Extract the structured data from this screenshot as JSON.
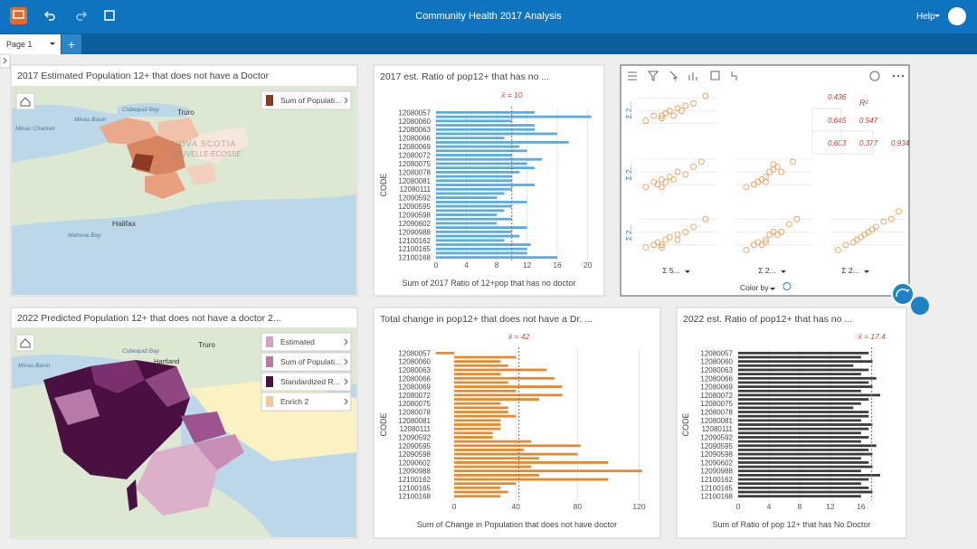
{
  "header": {
    "title": "Community Health 2017 Analysis",
    "help": "Help"
  },
  "tabs": {
    "page": "Page 1",
    "add": "+"
  },
  "maps": [
    {
      "title": "2017 Estimated Population 12+ that does not have a Doctor",
      "legend": [
        "Sum of Populati..."
      ],
      "labels": [
        "Truro",
        "Cobequid Bay",
        "Minas Basin",
        "Minas Channel",
        "Halifax",
        "Mahone Bay",
        "NOVA SCOTIA",
        "NOUVELLE-ÉCOSSE"
      ]
    },
    {
      "title": "2022 Predicted Population 12+ that does not have a doctor 2...",
      "legend": [
        "Estimated",
        "Sum of Populati...",
        "Standardized R...",
        "Enrich 2"
      ],
      "labels": [
        "Truro",
        "Cobequid Bay",
        "Minas Basin",
        "Hartland"
      ]
    }
  ],
  "scatter_matrix": {
    "x_labels": [
      "Σ 5...",
      "Σ 2...",
      "Σ 2..."
    ],
    "y_labels": [
      "Σ 2...",
      "Σ 2...",
      "Σ 2..."
    ],
    "r2_label": "R²",
    "r2": [
      0.436,
      0.645,
      0.547,
      0.603,
      0.377,
      0.934
    ],
    "color_by": "Color by"
  },
  "chart_data": [
    {
      "type": "bar",
      "orientation": "horizontal",
      "title": "2017 est. Ratio of pop12+ that has no ...",
      "y_label": "CODE",
      "x_label": "Sum of 2017 Ratio of 12+pop that has no doctor",
      "color": "#5aaedf",
      "mean": 10,
      "mean_label": "x̄ = 10",
      "categories": [
        "12080057",
        null,
        "12080060",
        null,
        "12080063",
        null,
        "12080066",
        null,
        "12080069",
        null,
        "12080072",
        null,
        "12080075",
        null,
        "12080078",
        null,
        "12080081",
        null,
        "12080111",
        null,
        "12090592",
        null,
        "12090595",
        null,
        "12090598",
        null,
        "12090602",
        null,
        "12090988",
        null,
        "12100162",
        null,
        "12100165",
        null,
        "12100168"
      ],
      "values": [
        13,
        20.5,
        10,
        13,
        13,
        16,
        9,
        17.5,
        11,
        12,
        10,
        14,
        12,
        13,
        11,
        10,
        10,
        13,
        10,
        9,
        8,
        12,
        10,
        9,
        8,
        10,
        8,
        12,
        10,
        11,
        9,
        12.5,
        12,
        12,
        16
      ],
      "xlim": [
        0,
        21
      ],
      "xticks": [
        0,
        4,
        8,
        12,
        16,
        20
      ]
    },
    {
      "type": "bar",
      "orientation": "horizontal",
      "title": "Total change in pop12+ that does not have a Dr. ...",
      "y_label": "CODE",
      "x_label": "Sum of Change in Population that does not have doctor",
      "color": "#e8892d",
      "mean": 42,
      "mean_label": "x̄ = 42",
      "categories": [
        "12080057",
        null,
        "12080060",
        null,
        "12080063",
        null,
        "12080066",
        null,
        "12080069",
        null,
        "12080072",
        null,
        "12080075",
        null,
        "12080078",
        null,
        "12080081",
        null,
        "12080111",
        null,
        "12090592",
        null,
        "12090595",
        null,
        "12090598",
        null,
        "12090602",
        null,
        "12090988",
        null,
        "12100162",
        null,
        "12100165",
        null,
        "12100168"
      ],
      "values": [
        -12,
        40,
        30,
        35,
        60,
        30,
        65,
        35,
        70,
        40,
        70,
        55,
        30,
        35,
        35,
        40,
        30,
        30,
        30,
        25,
        25,
        50,
        82,
        45,
        80,
        55,
        100,
        50,
        122,
        55,
        100,
        40,
        30,
        35,
        30
      ],
      "xlim": [
        -13,
        125
      ],
      "xticks": [
        0,
        40,
        80,
        120
      ]
    },
    {
      "type": "bar",
      "orientation": "horizontal",
      "title": "2022 est. Ratio of pop12+ that has no ...",
      "y_label": "CODE",
      "x_label": "Sum of Ratio of pop 12+ that has No Doctor",
      "color": "#3d3d3d",
      "mean": 17.4,
      "mean_label": "x̄ = 17.4",
      "categories": [
        "12080057",
        null,
        "12080060",
        null,
        "12080063",
        null,
        "12080066",
        null,
        "12080069",
        null,
        "12080072",
        null,
        "12080075",
        null,
        "12080078",
        null,
        "12080081",
        null,
        "12080111",
        null,
        "12090592",
        null,
        "12090595",
        null,
        "12090598",
        null,
        "12090602",
        null,
        "12090988",
        null,
        "12100162",
        null,
        "12100165",
        null,
        "12100168"
      ],
      "values": [
        17,
        16,
        17.5,
        15,
        17,
        16,
        18,
        17,
        17.5,
        16,
        18.5,
        17,
        16,
        15,
        17,
        17,
        16,
        17.5,
        17,
        16,
        17,
        16,
        18,
        17,
        17.5,
        16,
        17,
        17.5,
        16,
        18.5,
        17,
        16,
        17,
        17.5,
        16
      ],
      "xlim": [
        0,
        18.5
      ],
      "xticks": [
        0,
        4,
        8,
        12,
        16
      ]
    },
    {
      "type": "scatter",
      "color": "#eea25a",
      "xlim": [
        0,
        10
      ],
      "ylim": [
        0,
        10
      ],
      "x": [
        1,
        2,
        3,
        3.5,
        4,
        4.5,
        5,
        6,
        7,
        8.5,
        3,
        5.5
      ],
      "values": [
        3,
        4,
        3.5,
        4.5,
        5,
        4,
        5.5,
        6,
        6.5,
        8,
        4,
        5
      ]
    },
    {
      "type": "scatter",
      "color": "#eea25a",
      "xlim": [
        0,
        10
      ],
      "ylim": [
        0,
        10
      ],
      "x": [
        1,
        2,
        2.5,
        3,
        3.5,
        4,
        5,
        6,
        7,
        8,
        3,
        4.5
      ],
      "values": [
        2,
        3,
        2.5,
        3.5,
        3,
        4,
        5,
        4.5,
        6,
        7,
        2,
        3.5
      ]
    },
    {
      "type": "scatter",
      "color": "#eea25a",
      "xlim": [
        0,
        10
      ],
      "ylim": [
        0,
        10
      ],
      "x": [
        1.5,
        2.5,
        3,
        3.5,
        4,
        4.5,
        5,
        5.5,
        6,
        7.5,
        4,
        5
      ],
      "values": [
        2,
        2.5,
        3,
        3.5,
        4,
        5,
        5.5,
        6,
        5,
        7,
        3,
        6.5
      ]
    },
    {
      "type": "scatter",
      "color": "#eea25a",
      "xlim": [
        0,
        10
      ],
      "ylim": [
        0,
        10
      ],
      "x": [
        1,
        2,
        2.5,
        3,
        3.5,
        4,
        5,
        6,
        7,
        8.5,
        3,
        5
      ],
      "values": [
        2,
        2.5,
        3,
        2.5,
        3.5,
        4,
        4.5,
        5,
        6,
        7.5,
        2,
        3.5
      ]
    },
    {
      "type": "scatter",
      "color": "#eea25a",
      "xlim": [
        0,
        10
      ],
      "ylim": [
        0,
        10
      ],
      "x": [
        1.5,
        2.5,
        3,
        3.5,
        4,
        4.5,
        5,
        6,
        7,
        8,
        4,
        5.5
      ],
      "values": [
        1.5,
        2.5,
        3,
        2.5,
        3.5,
        4.5,
        5,
        5,
        6.5,
        7.5,
        3,
        4.5
      ]
    },
    {
      "type": "scatter",
      "color": "#eea25a",
      "xlim": [
        0,
        10
      ],
      "ylim": [
        0,
        10
      ],
      "x": [
        1,
        2,
        3,
        4,
        4.5,
        5,
        6,
        7,
        8,
        9,
        3.5,
        5.5
      ],
      "values": [
        1.5,
        2.5,
        3,
        4,
        4.5,
        5,
        6,
        7,
        7.5,
        9,
        3.5,
        5.5
      ]
    }
  ]
}
